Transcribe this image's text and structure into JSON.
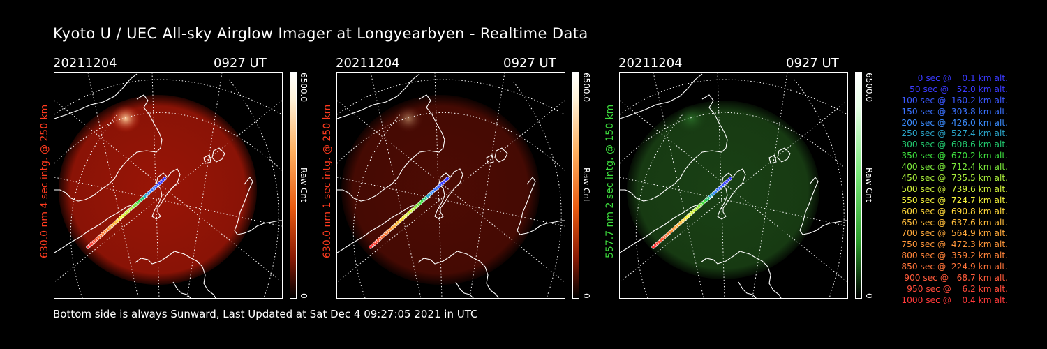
{
  "title": "Kyoto U / UEC All-sky Airglow Imager at Longyearbyen - Realtime Data",
  "panels": [
    {
      "date": "20211204",
      "time": "0927 UT",
      "ylabel": "630.0 nm 4 sec intg. @ 250 km",
      "label_color": "#ff3b1f",
      "cbar_max": "6500.0",
      "cbar_min": "0",
      "cbar_unit": "Raw Cnt",
      "glow": "#c41b08",
      "glow_opacity": 0.78,
      "scale": "red"
    },
    {
      "date": "20211204",
      "time": "0927 UT",
      "ylabel": "630.0 nm 1 sec intg. @ 250 km",
      "label_color": "#ff3b1f",
      "cbar_max": "6500.0",
      "cbar_min": "0",
      "cbar_unit": "Raw Cnt",
      "glow": "#5a0d04",
      "glow_opacity": 0.85,
      "scale": "red"
    },
    {
      "date": "20211204",
      "time": "0927 UT",
      "ylabel": "557.7 nm 2 sec intg. @ 150 km",
      "label_color": "#3ddc3d",
      "cbar_max": "6500.0",
      "cbar_min": "0",
      "cbar_unit": "Raw Cnt",
      "glow": "#1e4c18",
      "glow_opacity": 0.85,
      "scale": "green"
    }
  ],
  "footer": "Bottom side is always Sunward, Last Updated at Sat Dec  4 09:27:05 2021 in UTC",
  "legend": [
    {
      "text": "   0 sec @    0.1 km alt.",
      "color": "#3a3aff"
    },
    {
      "text": "  50 sec @   52.0 km alt.",
      "color": "#3a3aff"
    },
    {
      "text": " 100 sec @  160.2 km alt.",
      "color": "#3a58ff"
    },
    {
      "text": " 150 sec @  303.8 km alt.",
      "color": "#3a72ff"
    },
    {
      "text": " 200 sec @  426.0 km alt.",
      "color": "#3a8cff"
    },
    {
      "text": " 250 sec @  527.4 km alt.",
      "color": "#2aa4c8"
    },
    {
      "text": " 300 sec @  608.6 km alt.",
      "color": "#22c86e"
    },
    {
      "text": " 350 sec @  670.2 km alt.",
      "color": "#3ee03e"
    },
    {
      "text": " 400 sec @  712.4 km alt.",
      "color": "#7ae83a"
    },
    {
      "text": " 450 sec @  735.5 km alt.",
      "color": "#a8ec3a"
    },
    {
      "text": " 500 sec @  739.6 km alt.",
      "color": "#d0f03a"
    },
    {
      "text": " 550 sec @  724.7 km alt.",
      "color": "#f4f23a"
    },
    {
      "text": " 600 sec @  690.8 km alt.",
      "color": "#ffd83a"
    },
    {
      "text": " 650 sec @  637.6 km alt.",
      "color": "#ffbc3a"
    },
    {
      "text": " 700 sec @  564.9 km alt.",
      "color": "#ffa83a"
    },
    {
      "text": " 750 sec @  472.3 km alt.",
      "color": "#ff963a"
    },
    {
      "text": " 800 sec @  359.2 km alt.",
      "color": "#ff843a"
    },
    {
      "text": " 850 sec @  224.9 km alt.",
      "color": "#ff743a"
    },
    {
      "text": " 900 sec @   68.7 km alt.",
      "color": "#ff5a3a"
    },
    {
      "text": " 950 sec @    6.2 km alt.",
      "color": "#ff4a3a"
    },
    {
      "text": "1000 sec @    0.4 km alt.",
      "color": "#ff3a3a"
    }
  ]
}
